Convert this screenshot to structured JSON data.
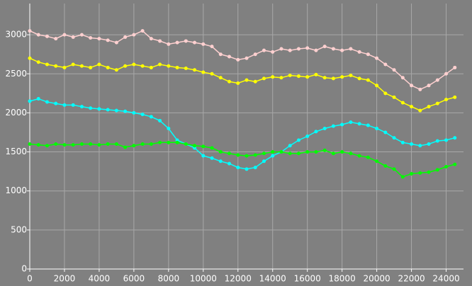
{
  "chart_data": {
    "type": "line",
    "markers": true,
    "grid": true,
    "background": "#808080",
    "grid_color": "#a8a8a8",
    "axis_color": "#ffffff",
    "text_color": "#ffffff",
    "x": [
      0,
      500,
      1000,
      1500,
      2000,
      2500,
      3000,
      3500,
      4000,
      4500,
      5000,
      5500,
      6000,
      6500,
      7000,
      7500,
      8000,
      8500,
      9000,
      9500,
      10000,
      10500,
      11000,
      11500,
      12000,
      12500,
      13000,
      13500,
      14000,
      14500,
      15000,
      15500,
      16000,
      16500,
      17000,
      17500,
      18000,
      18500,
      19000,
      19500,
      20000,
      20500,
      21000,
      21500,
      22000,
      22500,
      23000,
      23500,
      24000,
      24500
    ],
    "series": [
      {
        "color": "#ffd0d0",
        "values": [
          3050,
          3000,
          2980,
          2950,
          3000,
          2970,
          3000,
          2960,
          2950,
          2930,
          2900,
          2970,
          3000,
          3050,
          2950,
          2920,
          2880,
          2900,
          2920,
          2900,
          2880,
          2850,
          2750,
          2720,
          2680,
          2700,
          2750,
          2800,
          2780,
          2820,
          2800,
          2820,
          2830,
          2800,
          2850,
          2820,
          2800,
          2820,
          2780,
          2750,
          2700,
          2620,
          2550,
          2450,
          2350,
          2300,
          2350,
          2420,
          2500,
          2580
        ]
      },
      {
        "color": "#ffff00",
        "values": [
          2700,
          2650,
          2620,
          2600,
          2580,
          2620,
          2600,
          2580,
          2620,
          2580,
          2550,
          2600,
          2620,
          2600,
          2580,
          2620,
          2600,
          2580,
          2570,
          2550,
          2520,
          2500,
          2450,
          2400,
          2380,
          2420,
          2400,
          2440,
          2460,
          2450,
          2480,
          2470,
          2460,
          2490,
          2450,
          2440,
          2460,
          2480,
          2440,
          2420,
          2350,
          2250,
          2200,
          2130,
          2080,
          2030,
          2080,
          2120,
          2170,
          2200
        ]
      },
      {
        "color": "#00ffff",
        "values": [
          2150,
          2180,
          2140,
          2120,
          2100,
          2100,
          2080,
          2060,
          2050,
          2040,
          2030,
          2020,
          2000,
          1980,
          1950,
          1900,
          1800,
          1650,
          1600,
          1550,
          1450,
          1420,
          1380,
          1350,
          1300,
          1280,
          1300,
          1380,
          1450,
          1500,
          1580,
          1650,
          1700,
          1760,
          1800,
          1830,
          1850,
          1880,
          1860,
          1840,
          1800,
          1750,
          1680,
          1620,
          1600,
          1580,
          1600,
          1640,
          1650,
          1680
        ]
      },
      {
        "color": "#00ff00",
        "values": [
          1600,
          1590,
          1580,
          1600,
          1590,
          1590,
          1600,
          1600,
          1590,
          1600,
          1600,
          1560,
          1580,
          1600,
          1600,
          1620,
          1620,
          1620,
          1600,
          1580,
          1570,
          1550,
          1500,
          1480,
          1460,
          1450,
          1460,
          1480,
          1500,
          1500,
          1480,
          1480,
          1500,
          1500,
          1520,
          1480,
          1500,
          1480,
          1450,
          1430,
          1380,
          1320,
          1280,
          1180,
          1220,
          1230,
          1240,
          1270,
          1310,
          1340
        ]
      }
    ],
    "xlim": [
      0,
      25000
    ],
    "ylim": [
      0,
      3400
    ],
    "xticks": [
      0,
      2000,
      4000,
      6000,
      8000,
      10000,
      12000,
      14000,
      16000,
      18000,
      20000,
      22000,
      24000
    ],
    "yticks": [
      0,
      500,
      1000,
      1500,
      2000,
      2500,
      3000
    ]
  }
}
